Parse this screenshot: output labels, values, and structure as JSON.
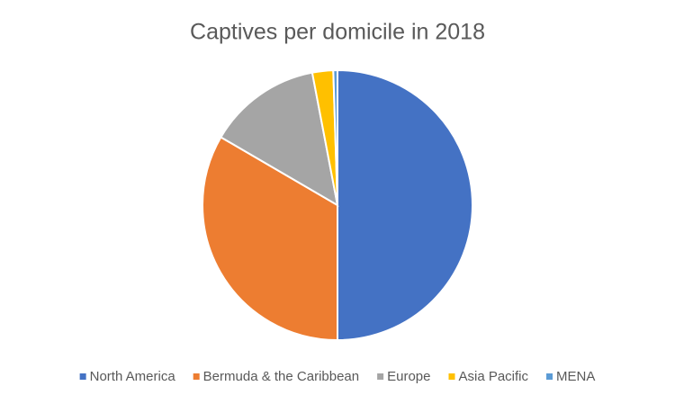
{
  "chart_data": {
    "type": "pie",
    "title": "Captives per domicile in 2018",
    "categories": [
      "North America",
      "Bermuda & the Caribbean",
      "Europe",
      "Asia Pacific",
      "MENA"
    ],
    "values": [
      50,
      33.4,
      13.6,
      2.5,
      0.5
    ],
    "colors": [
      "#4472c4",
      "#ed7d31",
      "#a5a5a5",
      "#ffc000",
      "#5b9bd5"
    ],
    "legend": "bottom"
  }
}
